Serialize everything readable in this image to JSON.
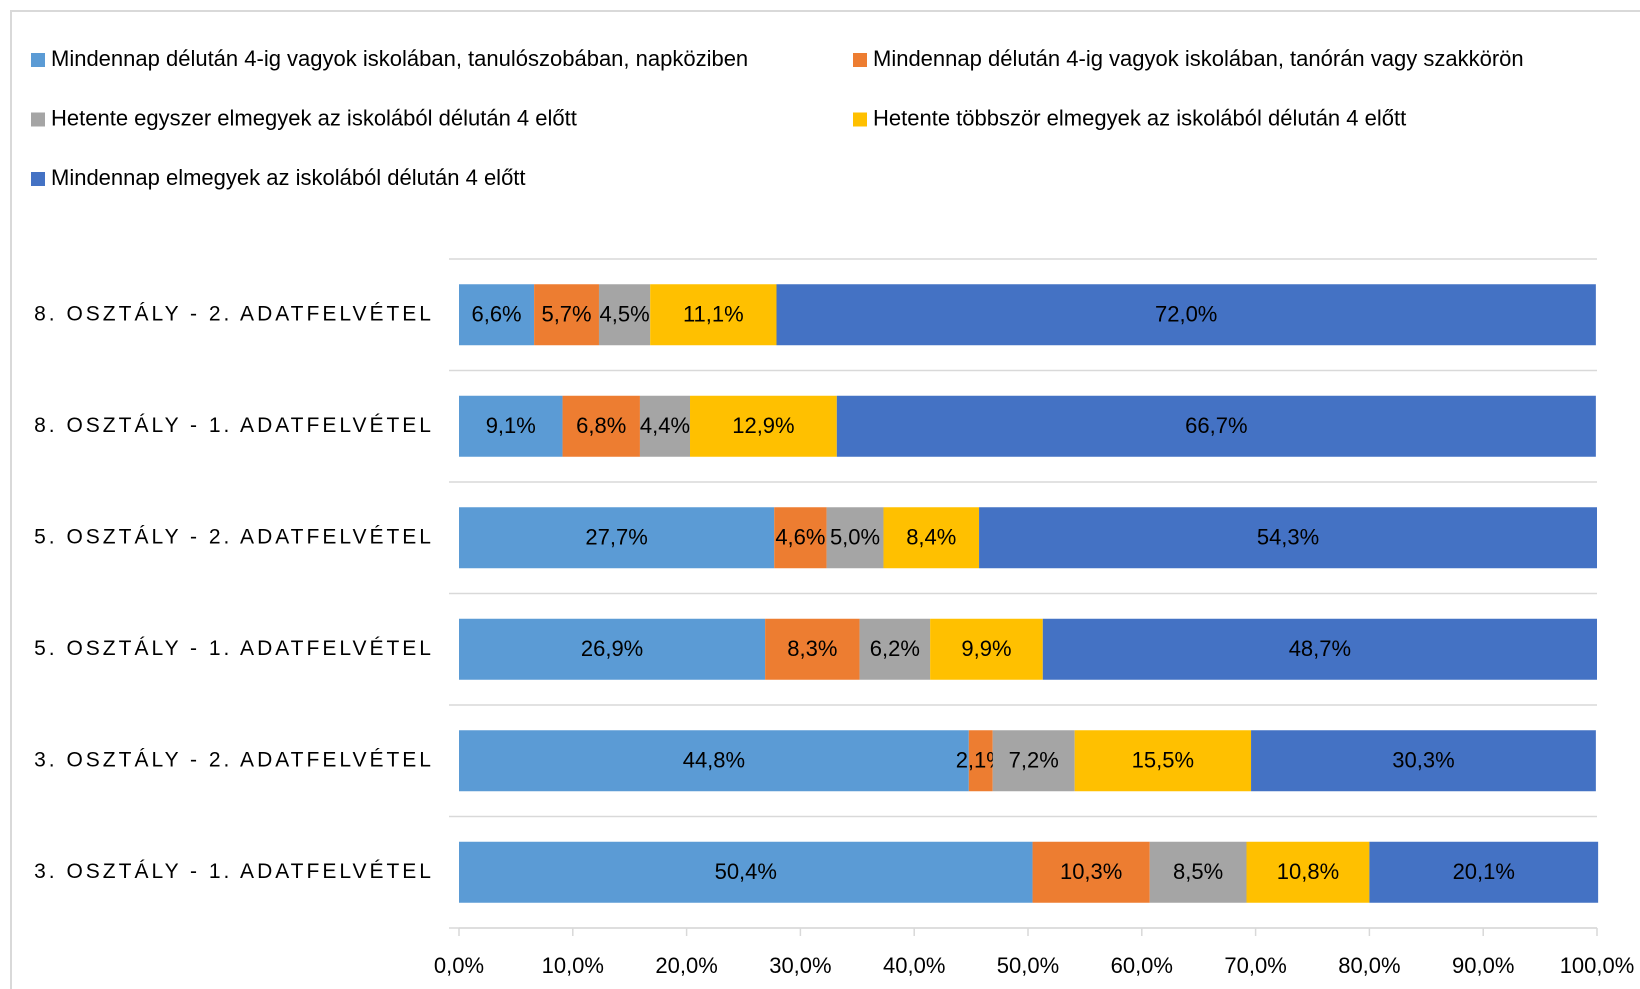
{
  "chart_data": {
    "type": "stacked_bar_horizontal",
    "categories": [
      "8. OSZTÁLY - 2. ADATFELVÉTEL",
      "8. OSZTÁLY - 1. ADATFELVÉTEL",
      "5. OSZTÁLY - 2. ADATFELVÉTEL",
      "5. OSZTÁLY - 1. ADATFELVÉTEL",
      "3. OSZTÁLY - 2. ADATFELVÉTEL",
      "3. OSZTÁLY - 1. ADATFELVÉTEL"
    ],
    "series": [
      {
        "name": "Mindennap délután 4-ig vagyok iskolában, tanulószobában, napköziben",
        "color": "#5b9bd5",
        "values": [
          6.6,
          9.1,
          27.7,
          26.9,
          44.8,
          50.4
        ],
        "value_labels": [
          "6,6%",
          "9,1%",
          "27,7%",
          "26,9%",
          "44,8%",
          "50,4%"
        ]
      },
      {
        "name": "Mindennap délután 4-ig vagyok iskolában, tanórán vagy szakkörön",
        "color": "#ed7d31",
        "values": [
          5.7,
          6.8,
          4.6,
          8.3,
          2.1,
          10.3
        ],
        "value_labels": [
          "5,7%",
          "6,8%",
          "4,6%",
          "8,3%",
          "2,1%",
          "10,3%"
        ]
      },
      {
        "name": "Hetente egyszer elmegyek az iskolából délután 4 előtt",
        "color": "#a5a5a5",
        "values": [
          4.5,
          4.4,
          5.0,
          6.2,
          7.2,
          8.5
        ],
        "value_labels": [
          "4,5%",
          "4,4%",
          "5,0%",
          "6,2%",
          "7,2%",
          "8,5%"
        ]
      },
      {
        "name": "Hetente többször elmegyek az iskolából délután 4 előtt",
        "color": "#ffc000",
        "values": [
          11.1,
          12.9,
          8.4,
          9.9,
          15.5,
          10.8
        ],
        "value_labels": [
          "11,1%",
          "12,9%",
          "8,4%",
          "9,9%",
          "15,5%",
          "10,8%"
        ]
      },
      {
        "name": "Mindennap elmegyek az iskolából délután 4 előtt",
        "color": "#4472c4",
        "values": [
          72.0,
          66.7,
          54.3,
          48.7,
          30.3,
          20.1
        ],
        "value_labels": [
          "72,0%",
          "66,7%",
          "54,3%",
          "48,7%",
          "30,3%",
          "20,1%"
        ]
      }
    ],
    "xlim": [
      0,
      100
    ],
    "xticks": [
      {
        "value": 0,
        "label": "0,0%"
      },
      {
        "value": 10,
        "label": "10,0%"
      },
      {
        "value": 20,
        "label": "20,0%"
      },
      {
        "value": 30,
        "label": "30,0%"
      },
      {
        "value": 40,
        "label": "40,0%"
      },
      {
        "value": 50,
        "label": "50,0%"
      },
      {
        "value": 60,
        "label": "60,0%"
      },
      {
        "value": 70,
        "label": "70,0%"
      },
      {
        "value": 80,
        "label": "80,0%"
      },
      {
        "value": 90,
        "label": "90,0%"
      },
      {
        "value": 100,
        "label": "100,0%"
      }
    ],
    "legend": "top"
  }
}
